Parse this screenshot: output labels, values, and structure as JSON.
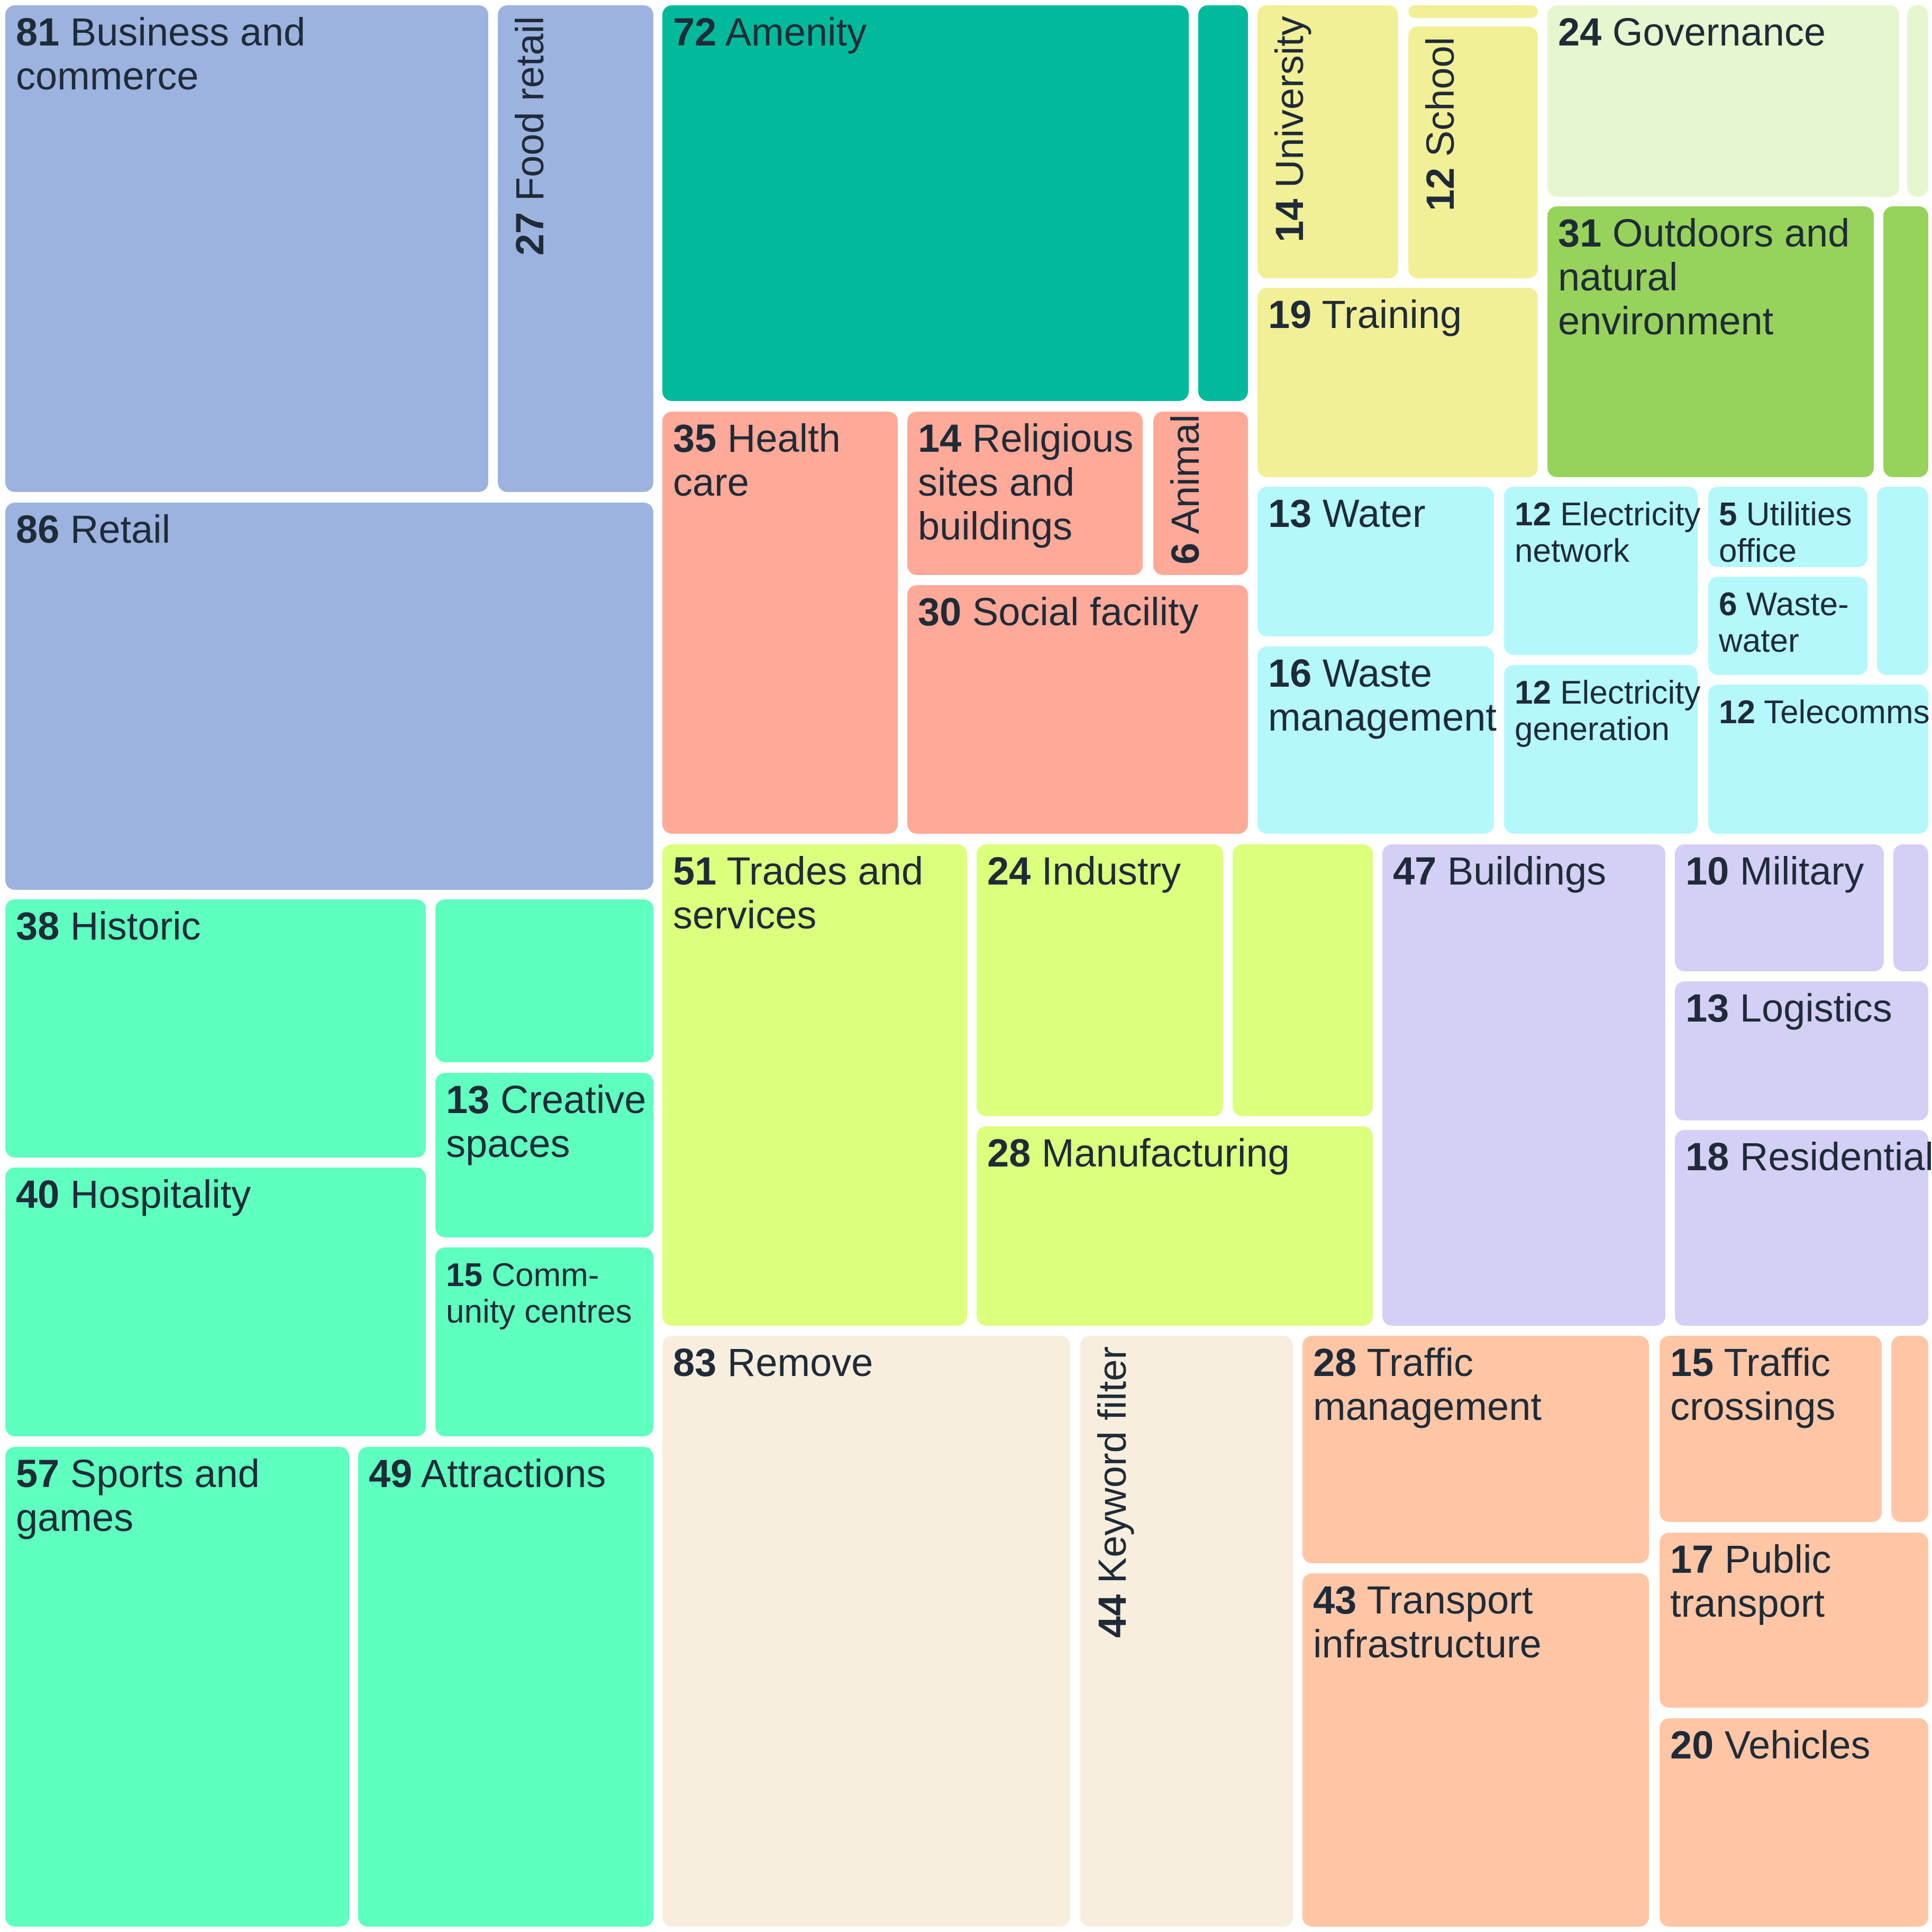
{
  "chart_data": {
    "type": "treemap",
    "title": "",
    "colors": {
      "blue": "#9cb3df",
      "teal": "#00ba9b",
      "salmon": "#ffa998",
      "yellow": "#f2f097",
      "lightgreen": "#e6f7cf",
      "green": "#97d35b",
      "cyan": "#b4f8fc",
      "mint": "#5fffbf",
      "lime": "#dcff7e",
      "lavender": "#d4cff5",
      "cream": "#f7eedd",
      "peach": "#ffc6a6"
    },
    "groups": [
      {
        "color": "blue",
        "items": [
          {
            "value": 81,
            "label": "Business and\ncommerce"
          },
          {
            "value": 27,
            "label": "Food retail"
          },
          {
            "value": 86,
            "label": "Retail"
          }
        ]
      },
      {
        "color": "teal",
        "items": [
          {
            "value": 72,
            "label": "Amenity"
          },
          {
            "value": null,
            "label": ""
          }
        ]
      },
      {
        "color": "salmon",
        "items": [
          {
            "value": 35,
            "label": "Health\ncare"
          },
          {
            "value": 14,
            "label": "Religious\nsites and\nbuildings"
          },
          {
            "value": 6,
            "label": "Animal"
          },
          {
            "value": 30,
            "label": "Social facility"
          }
        ]
      },
      {
        "color": "yellow",
        "items": [
          {
            "value": 14,
            "label": "University"
          },
          {
            "value": 12,
            "label": "School"
          },
          {
            "value": null,
            "label": ""
          },
          {
            "value": 19,
            "label": "Training"
          }
        ]
      },
      {
        "color": "lightgreen",
        "items": [
          {
            "value": 24,
            "label": "Governance"
          },
          {
            "value": null,
            "label": ""
          }
        ]
      },
      {
        "color": "green",
        "items": [
          {
            "value": 31,
            "label": "Outdoors and\nnatural\nenvironment"
          },
          {
            "value": null,
            "label": ""
          }
        ]
      },
      {
        "color": "cyan",
        "items": [
          {
            "value": 13,
            "label": "Water"
          },
          {
            "value": 12,
            "label": "Electricity\nnetwork"
          },
          {
            "value": 5,
            "label": "Utilities\noffice"
          },
          {
            "value": 6,
            "label": "Waste-\nwater"
          },
          {
            "value": null,
            "label": ""
          },
          {
            "value": 16,
            "label": "Waste\nmanagement"
          },
          {
            "value": 12,
            "label": "Electricity\ngeneration"
          },
          {
            "value": 12,
            "label": "Telecomms"
          }
        ]
      },
      {
        "color": "mint",
        "items": [
          {
            "value": 38,
            "label": "Historic"
          },
          {
            "value": null,
            "label": ""
          },
          {
            "value": 13,
            "label": "Creative\nspaces"
          },
          {
            "value": 40,
            "label": "Hospitality"
          },
          {
            "value": 15,
            "label": "Comm-\nunity centres"
          },
          {
            "value": 57,
            "label": "Sports and\ngames"
          },
          {
            "value": 49,
            "label": "Attractions"
          }
        ]
      },
      {
        "color": "lime",
        "items": [
          {
            "value": 51,
            "label": "Trades and\nservices"
          },
          {
            "value": 24,
            "label": "Industry"
          },
          {
            "value": null,
            "label": ""
          },
          {
            "value": 28,
            "label": "Manufacturing"
          }
        ]
      },
      {
        "color": "lavender",
        "items": [
          {
            "value": 47,
            "label": "Buildings"
          },
          {
            "value": 10,
            "label": "Military"
          },
          {
            "value": null,
            "label": ""
          },
          {
            "value": 13,
            "label": "Logistics"
          },
          {
            "value": 18,
            "label": "Residential"
          }
        ]
      },
      {
        "color": "cream",
        "items": [
          {
            "value": 83,
            "label": "Remove"
          },
          {
            "value": 44,
            "label": "Keyword filter"
          }
        ]
      },
      {
        "color": "peach",
        "items": [
          {
            "value": 28,
            "label": "Traffic\nmanagement"
          },
          {
            "value": 43,
            "label": "Transport\ninfrastructure"
          },
          {
            "value": 15,
            "label": "Traffic\ncrossings"
          },
          {
            "value": null,
            "label": ""
          },
          {
            "value": 17,
            "label": "Public\ntransport"
          },
          {
            "value": 20,
            "label": "Vehicles"
          }
        ]
      }
    ]
  }
}
